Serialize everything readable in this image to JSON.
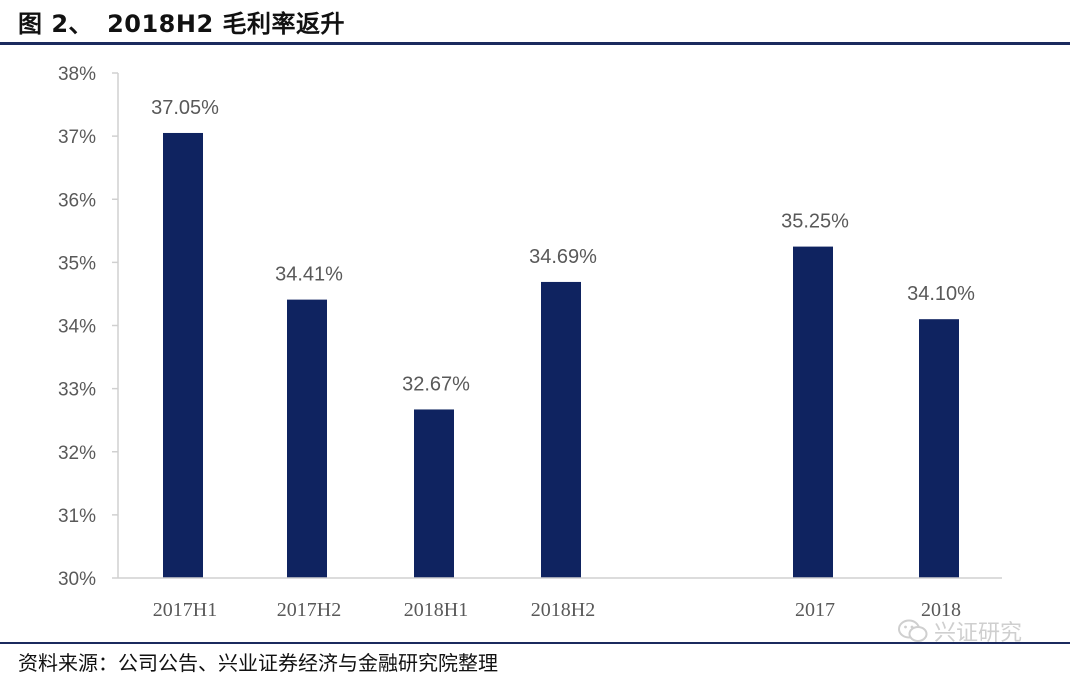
{
  "header": {
    "figure_label": "图 2、",
    "title": "2018H2 毛利率返升"
  },
  "footer": {
    "source": "资料来源：公司公告、兴业证券经济与金融研究院整理"
  },
  "watermark": {
    "icon": "wechat-icon",
    "text": "兴证研究"
  },
  "colors": {
    "bar": "#0f2360",
    "rule": "#1b2a5e",
    "axis": "#d0d0d0",
    "text": "#595959"
  },
  "chart_data": {
    "type": "bar",
    "categories": [
      "2017H1",
      "2017H2",
      "2018H1",
      "2018H2",
      "2017",
      "2018"
    ],
    "values": [
      37.05,
      34.41,
      32.67,
      34.69,
      35.25,
      34.1
    ],
    "data_labels": [
      "37.05%",
      "34.41%",
      "32.67%",
      "34.69%",
      "35.25%",
      "34.10%"
    ],
    "group_gap_after_index": 3,
    "ylim": [
      30,
      38
    ],
    "y_ticks": [
      "30%",
      "31%",
      "32%",
      "33%",
      "34%",
      "35%",
      "36%",
      "37%",
      "38%"
    ],
    "grid": false,
    "legend": "none",
    "xlabel": "",
    "ylabel": ""
  }
}
